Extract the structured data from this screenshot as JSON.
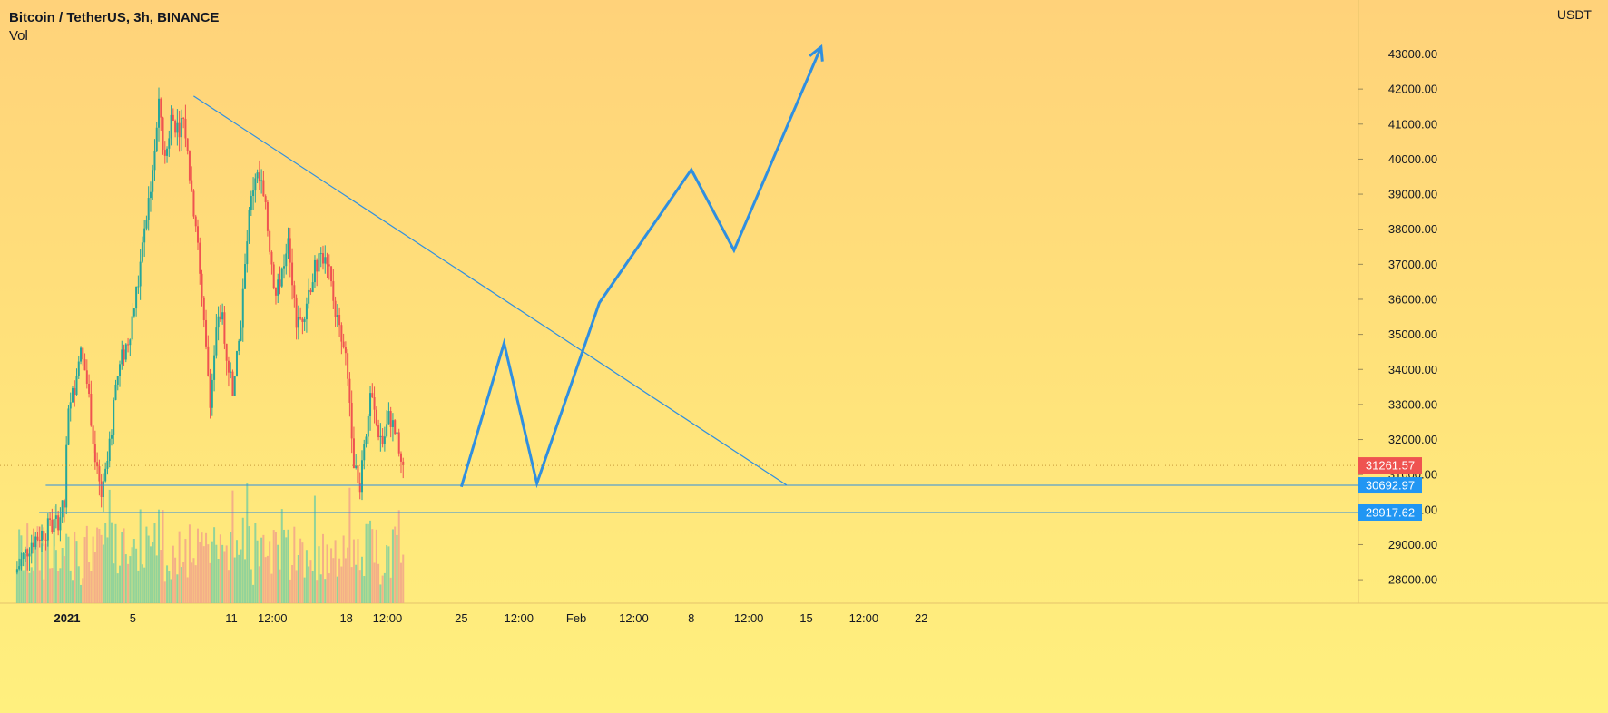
{
  "header": {
    "title": "Bitcoin / TetherUS, 3h, BINANCE",
    "subtitle": "Vol",
    "currency": "USDT"
  },
  "colors": {
    "up": "#26a69a",
    "down": "#ef5350",
    "vol_up": "#7fcf9f",
    "vol_down": "#f2a48a",
    "drawing": "#2f8fe0",
    "price_tag_red": "#ef5350",
    "price_tag_blue": "#2196f3"
  },
  "chart_data": {
    "type": "candlestick",
    "title": "Bitcoin / TetherUS, 3h, BINANCE",
    "ylim": [
      27200,
      44100
    ],
    "y_ticks": [
      28000,
      29000,
      30000,
      31000,
      32000,
      33000,
      34000,
      35000,
      36000,
      37000,
      38000,
      39000,
      40000,
      41000,
      42000,
      43000
    ],
    "y_tick_labels": [
      "28000.00",
      "29000.00",
      "30000.00",
      "31000.00",
      "32000.00",
      "33000.00",
      "34000.00",
      "35000.00",
      "36000.00",
      "37000.00",
      "38000.00",
      "39000.00",
      "40000.00",
      "41000.00",
      "42000.00",
      "43000.00"
    ],
    "x_ticks": [
      {
        "label": "2021",
        "day": 1,
        "bold": true
      },
      {
        "label": "5",
        "day": 5
      },
      {
        "label": "11",
        "day": 11
      },
      {
        "label": "12:00",
        "day": 13.5
      },
      {
        "label": "18",
        "day": 18
      },
      {
        "label": "12:00",
        "day": 20.5
      },
      {
        "label": "25",
        "day": 25
      },
      {
        "label": "12:00",
        "day": 28.5
      },
      {
        "label": "Feb",
        "day": 32
      },
      {
        "label": "12:00",
        "day": 35.5
      },
      {
        "label": "8",
        "day": 39
      },
      {
        "label": "12:00",
        "day": 42.5
      },
      {
        "label": "15",
        "day": 46
      },
      {
        "label": "12:00",
        "day": 49.5
      },
      {
        "label": "22",
        "day": 53
      }
    ],
    "price_series": [
      [
        0.0,
        28200
      ],
      [
        1.0,
        29100
      ],
      [
        1.8,
        29400
      ],
      [
        2.5,
        29600
      ],
      [
        3.0,
        30100
      ],
      [
        3.2,
        32500
      ],
      [
        3.6,
        33500
      ],
      [
        3.9,
        34600
      ],
      [
        4.3,
        33900
      ],
      [
        4.6,
        32800
      ],
      [
        4.9,
        31200
      ],
      [
        5.3,
        30300
      ],
      [
        5.7,
        31600
      ],
      [
        6.1,
        33500
      ],
      [
        6.5,
        34300
      ],
      [
        6.9,
        34900
      ],
      [
        7.4,
        36200
      ],
      [
        7.8,
        37600
      ],
      [
        8.2,
        39100
      ],
      [
        8.6,
        40700
      ],
      [
        8.8,
        41700
      ],
      [
        9.1,
        39800
      ],
      [
        9.5,
        41200
      ],
      [
        9.9,
        40900
      ],
      [
        10.3,
        41100
      ],
      [
        10.6,
        39600
      ],
      [
        11.0,
        38200
      ],
      [
        11.3,
        36300
      ],
      [
        11.6,
        34600
      ],
      [
        11.9,
        33100
      ],
      [
        12.2,
        34900
      ],
      [
        12.6,
        35700
      ],
      [
        12.9,
        34300
      ],
      [
        13.3,
        33400
      ],
      [
        13.6,
        34600
      ],
      [
        13.9,
        36300
      ],
      [
        14.2,
        38100
      ],
      [
        14.6,
        39600
      ],
      [
        15.0,
        39200
      ],
      [
        15.3,
        38300
      ],
      [
        15.6,
        37200
      ],
      [
        15.9,
        36000
      ],
      [
        16.2,
        36800
      ],
      [
        16.6,
        37600
      ],
      [
        16.9,
        36200
      ],
      [
        17.2,
        35200
      ],
      [
        17.6,
        35700
      ],
      [
        17.9,
        36300
      ],
      [
        18.3,
        36900
      ],
      [
        18.7,
        37300
      ],
      [
        19.1,
        36700
      ],
      [
        19.4,
        36000
      ],
      [
        19.8,
        34900
      ],
      [
        20.1,
        34300
      ],
      [
        20.4,
        33000
      ],
      [
        20.7,
        31000
      ],
      [
        21.0,
        30800
      ],
      [
        21.3,
        32200
      ],
      [
        21.7,
        33200
      ],
      [
        22.0,
        32400
      ],
      [
        22.4,
        31900
      ],
      [
        22.8,
        32700
      ],
      [
        23.2,
        32100
      ],
      [
        23.5,
        31300
      ]
    ],
    "volume_ylim": [
      0,
      1200
    ],
    "current_price": 31261.57,
    "current_price_label": "31261.57",
    "support_levels": [
      {
        "value": 30692.97,
        "label": "30692.97",
        "day_start": 0.8
      },
      {
        "value": 29917.62,
        "label": "29917.62",
        "day_start": 0.4
      }
    ],
    "trendline": {
      "points": [
        [
          8.7,
          41800
        ],
        [
          44.8,
          30700
        ]
      ]
    },
    "projection_path": [
      [
        25.0,
        30650
      ],
      [
        27.6,
        34750
      ],
      [
        29.6,
        30750
      ],
      [
        33.4,
        35900
      ],
      [
        39.0,
        39700
      ],
      [
        41.6,
        37400
      ],
      [
        46.9,
        43200
      ]
    ]
  }
}
